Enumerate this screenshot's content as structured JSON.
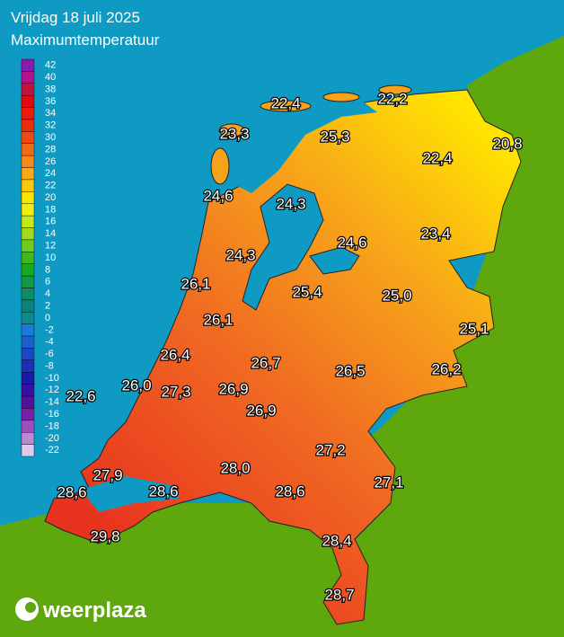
{
  "header": {
    "date": "Vrijdag 18 juli 2025",
    "title": "Maximumtemperatuur"
  },
  "legend": {
    "ticks": [
      42,
      40,
      38,
      36,
      34,
      32,
      30,
      28,
      26,
      24,
      22,
      20,
      18,
      16,
      14,
      12,
      10,
      8,
      6,
      4,
      2,
      0,
      -2,
      -4,
      -6,
      -8,
      -10,
      -12,
      -14,
      -16,
      -18,
      -20,
      -22
    ]
  },
  "stations": [
    "22,4",
    "22,2",
    "23,3",
    "25,3",
    "20,8",
    "22,4",
    "24,6",
    "24,3",
    "24,6",
    "23,4",
    "24,3",
    "26,1",
    "25,4",
    "25,0",
    "26,1",
    "25,1",
    "26,4",
    "26,7",
    "26,5",
    "26,2",
    "22,6",
    "26,0",
    "27,3",
    "26,9",
    "26,9",
    "27,2",
    "27,9",
    "28,0",
    "27,1",
    "28,6",
    "28,6",
    "28,6",
    "29,8",
    "28,4",
    "28,7"
  ],
  "brand": "weerplaza"
}
